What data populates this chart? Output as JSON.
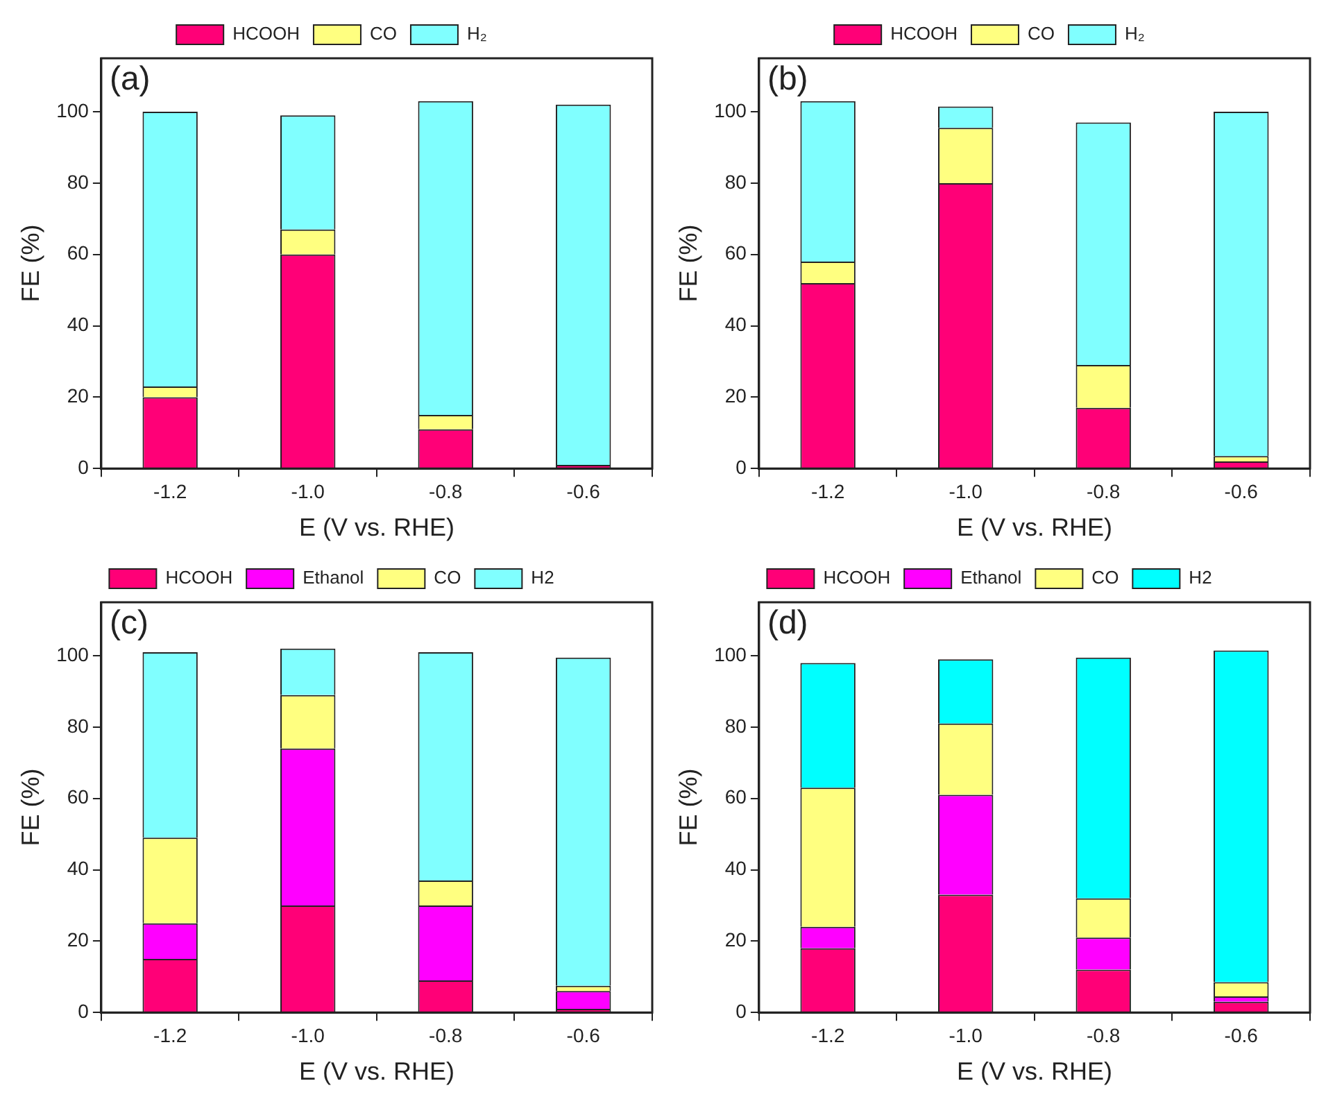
{
  "chart_data": [
    {
      "type": "bar",
      "title": "(a)",
      "xlabel": "E (V vs. RHE)",
      "ylabel": "FE (%)",
      "categories": [
        "-1.2",
        "-1.0",
        "-0.8",
        "-0.6"
      ],
      "stacked": true,
      "ylim": [
        0,
        115
      ],
      "yticks": [
        0,
        20,
        40,
        60,
        80,
        100
      ],
      "grid": false,
      "legend": "top",
      "series": [
        {
          "name": "HCOOH",
          "color": "#ff0077",
          "values": [
            20,
            60,
            11,
            1
          ]
        },
        {
          "name": "CO",
          "color": "#ffff80",
          "values": [
            3,
            7,
            4,
            0
          ]
        },
        {
          "name": "H₂",
          "color": "#80ffff",
          "values": [
            77,
            32,
            88,
            101
          ]
        }
      ]
    },
    {
      "type": "bar",
      "title": "(b)",
      "xlabel": "E (V vs. RHE)",
      "ylabel": "FE (%)",
      "categories": [
        "-1.2",
        "-1.0",
        "-0.8",
        "-0.6"
      ],
      "stacked": true,
      "ylim": [
        0,
        115
      ],
      "yticks": [
        0,
        20,
        40,
        60,
        80,
        100
      ],
      "grid": false,
      "legend": "top",
      "series": [
        {
          "name": "HCOOH",
          "color": "#ff0077",
          "values": [
            52,
            80,
            17,
            2
          ]
        },
        {
          "name": "CO",
          "color": "#ffff80",
          "values": [
            6,
            15.5,
            12,
            1.5
          ]
        },
        {
          "name": "H₂",
          "color": "#80ffff",
          "values": [
            45,
            6,
            68,
            96.5
          ]
        }
      ]
    },
    {
      "type": "bar",
      "title": "(c)",
      "xlabel": "E (V vs. RHE)",
      "ylabel": "FE (%)",
      "categories": [
        "-1.2",
        "-1.0",
        "-0.8",
        "-0.6"
      ],
      "stacked": true,
      "ylim": [
        0,
        115
      ],
      "yticks": [
        0,
        20,
        40,
        60,
        80,
        100
      ],
      "grid": false,
      "legend": "top",
      "series": [
        {
          "name": "HCOOH",
          "color": "#ff0077",
          "values": [
            15,
            30,
            9,
            1
          ]
        },
        {
          "name": "Ethanol",
          "color": "#ff00ff",
          "values": [
            10,
            44,
            21,
            5
          ]
        },
        {
          "name": "CO",
          "color": "#ffff80",
          "values": [
            24,
            15,
            7,
            1.5
          ]
        },
        {
          "name": "H2",
          "color": "#80ffff",
          "values": [
            52,
            13,
            64,
            92
          ]
        }
      ]
    },
    {
      "type": "bar",
      "title": "(d)",
      "xlabel": "E (V vs. RHE)",
      "ylabel": "FE (%)",
      "categories": [
        "-1.2",
        "-1.0",
        "-0.8",
        "-0.6"
      ],
      "stacked": true,
      "ylim": [
        0,
        115
      ],
      "yticks": [
        0,
        20,
        40,
        60,
        80,
        100
      ],
      "grid": false,
      "legend": "top",
      "series": [
        {
          "name": "HCOOH",
          "color": "#ff0077",
          "values": [
            18,
            33,
            12,
            3
          ]
        },
        {
          "name": "Ethanol",
          "color": "#ff00ff",
          "values": [
            6,
            28,
            9,
            1.5
          ]
        },
        {
          "name": "CO",
          "color": "#ffff80",
          "values": [
            39,
            20,
            11,
            4
          ]
        },
        {
          "name": "H2",
          "color": "#00ffff",
          "values": [
            35,
            18,
            67.5,
            93
          ]
        }
      ]
    }
  ]
}
